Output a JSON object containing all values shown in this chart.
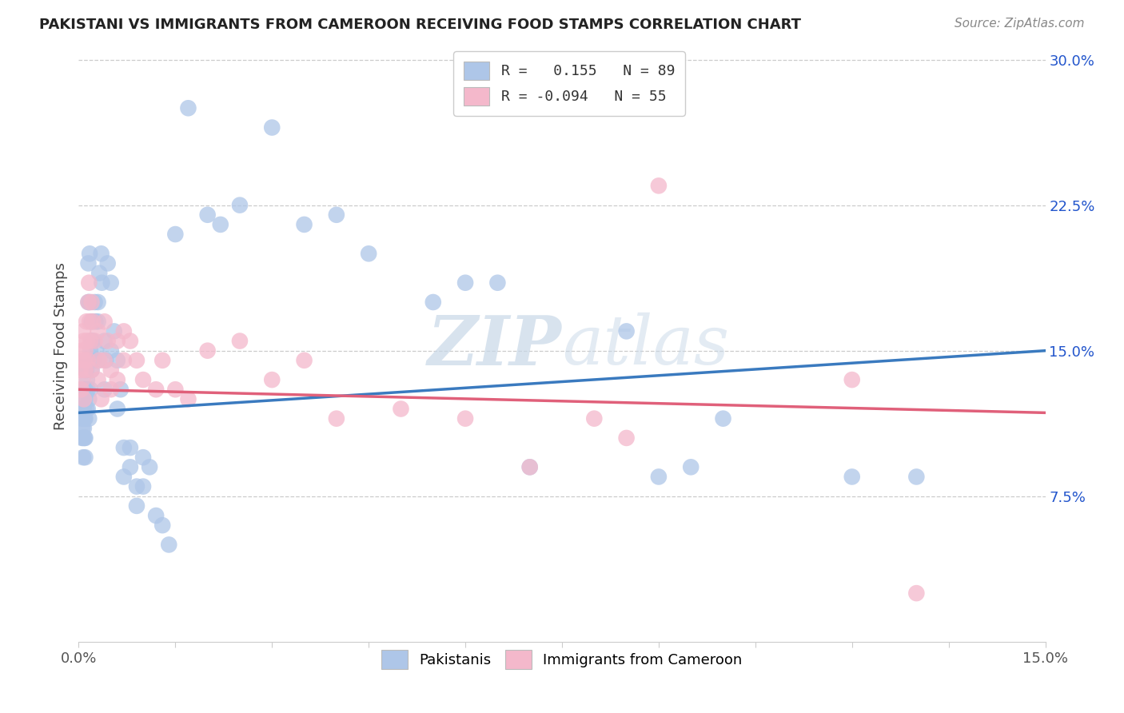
{
  "title": "PAKISTANI VS IMMIGRANTS FROM CAMEROON RECEIVING FOOD STAMPS CORRELATION CHART",
  "source": "Source: ZipAtlas.com",
  "ylabel": "Receiving Food Stamps",
  "watermark_zip": "ZIP",
  "watermark_atlas": "atlas",
  "legend_blue_r": "R =   0.155",
  "legend_blue_n": "N = 89",
  "legend_pink_r": "R = -0.094",
  "legend_pink_n": "N = 55",
  "blue_color": "#aec6e8",
  "pink_color": "#f4b8cb",
  "blue_line_color": "#3a7abf",
  "pink_line_color": "#e0607a",
  "blue_label_color": "#2255cc",
  "xlim": [
    0.0,
    0.15
  ],
  "ylim": [
    0.0,
    0.305
  ],
  "blue_line_y0": 0.118,
  "blue_line_y1": 0.15,
  "pink_line_y0": 0.13,
  "pink_line_y1": 0.118,
  "pak_x": [
    0.0003,
    0.0004,
    0.0005,
    0.0005,
    0.0006,
    0.0006,
    0.0007,
    0.0007,
    0.0007,
    0.0008,
    0.0008,
    0.0009,
    0.0009,
    0.0009,
    0.001,
    0.001,
    0.001,
    0.001,
    0.001,
    0.001,
    0.0012,
    0.0012,
    0.0013,
    0.0013,
    0.0014,
    0.0014,
    0.0015,
    0.0015,
    0.0016,
    0.0016,
    0.0017,
    0.0017,
    0.0018,
    0.0018,
    0.002,
    0.002,
    0.002,
    0.0022,
    0.0023,
    0.0025,
    0.0026,
    0.0027,
    0.003,
    0.003,
    0.003,
    0.0032,
    0.0035,
    0.0036,
    0.004,
    0.004,
    0.0042,
    0.0045,
    0.005,
    0.005,
    0.0055,
    0.006,
    0.006,
    0.0065,
    0.007,
    0.007,
    0.008,
    0.008,
    0.009,
    0.009,
    0.01,
    0.01,
    0.011,
    0.012,
    0.013,
    0.014,
    0.015,
    0.017,
    0.02,
    0.022,
    0.025,
    0.03,
    0.035,
    0.04,
    0.045,
    0.055,
    0.06,
    0.065,
    0.07,
    0.085,
    0.09,
    0.095,
    0.1,
    0.12,
    0.13
  ],
  "pak_y": [
    0.13,
    0.125,
    0.115,
    0.105,
    0.12,
    0.11,
    0.115,
    0.105,
    0.095,
    0.12,
    0.11,
    0.13,
    0.115,
    0.105,
    0.14,
    0.13,
    0.125,
    0.115,
    0.105,
    0.095,
    0.14,
    0.12,
    0.145,
    0.135,
    0.13,
    0.12,
    0.195,
    0.175,
    0.125,
    0.115,
    0.2,
    0.175,
    0.15,
    0.13,
    0.165,
    0.155,
    0.14,
    0.155,
    0.145,
    0.175,
    0.165,
    0.15,
    0.175,
    0.165,
    0.145,
    0.19,
    0.2,
    0.185,
    0.155,
    0.13,
    0.145,
    0.195,
    0.185,
    0.15,
    0.16,
    0.145,
    0.12,
    0.13,
    0.1,
    0.085,
    0.1,
    0.09,
    0.08,
    0.07,
    0.095,
    0.08,
    0.09,
    0.065,
    0.06,
    0.05,
    0.21,
    0.275,
    0.22,
    0.215,
    0.225,
    0.265,
    0.215,
    0.22,
    0.2,
    0.175,
    0.185,
    0.185,
    0.09,
    0.16,
    0.085,
    0.09,
    0.115,
    0.085,
    0.085
  ],
  "cam_x": [
    0.0003,
    0.0004,
    0.0005,
    0.0006,
    0.0006,
    0.0007,
    0.0008,
    0.0008,
    0.0009,
    0.001,
    0.001,
    0.0012,
    0.0013,
    0.0014,
    0.0015,
    0.0016,
    0.0017,
    0.0018,
    0.002,
    0.002,
    0.0022,
    0.0025,
    0.003,
    0.003,
    0.0032,
    0.0035,
    0.004,
    0.004,
    0.0045,
    0.005,
    0.005,
    0.006,
    0.006,
    0.007,
    0.007,
    0.008,
    0.009,
    0.01,
    0.012,
    0.013,
    0.015,
    0.017,
    0.02,
    0.025,
    0.03,
    0.035,
    0.04,
    0.05,
    0.06,
    0.07,
    0.08,
    0.085,
    0.09,
    0.12,
    0.13
  ],
  "cam_y": [
    0.14,
    0.13,
    0.15,
    0.145,
    0.135,
    0.16,
    0.155,
    0.125,
    0.145,
    0.15,
    0.14,
    0.165,
    0.155,
    0.145,
    0.175,
    0.185,
    0.165,
    0.155,
    0.175,
    0.14,
    0.165,
    0.155,
    0.16,
    0.135,
    0.145,
    0.125,
    0.165,
    0.145,
    0.155,
    0.14,
    0.13,
    0.155,
    0.135,
    0.16,
    0.145,
    0.155,
    0.145,
    0.135,
    0.13,
    0.145,
    0.13,
    0.125,
    0.15,
    0.155,
    0.135,
    0.145,
    0.115,
    0.12,
    0.115,
    0.09,
    0.115,
    0.105,
    0.235,
    0.135,
    0.025
  ]
}
